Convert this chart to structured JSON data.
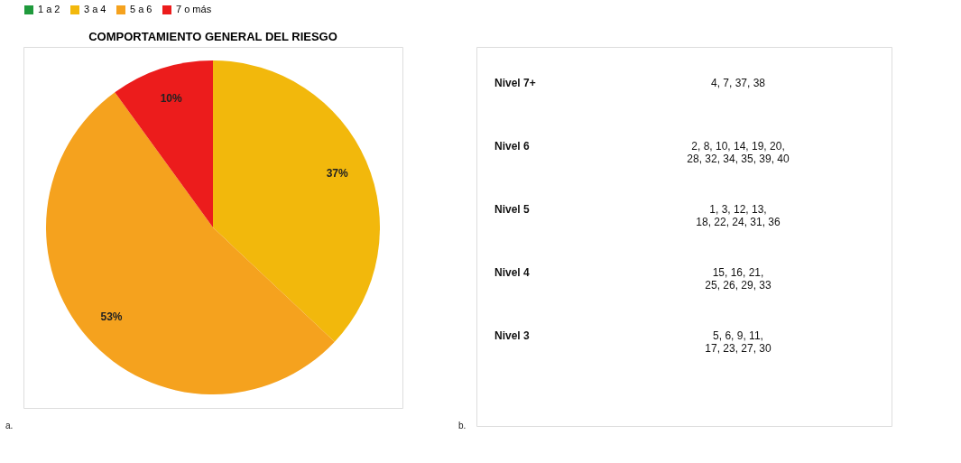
{
  "chart_data": [
    {
      "type": "pie",
      "title": "COMPORTAMIENTO GENERAL DEL RIESGO",
      "categories": [
        "1 a 2",
        "3 a 4",
        "5 a 6",
        "7 o más"
      ],
      "values": [
        0,
        37,
        53,
        10
      ],
      "colors": [
        "#1f9a3c",
        "#f2b80c",
        "#f5a21e",
        "#ec1c1c"
      ],
      "value_labels": [
        null,
        "37%",
        "53%",
        "10%"
      ],
      "legend": "top",
      "annotations": [
        "a."
      ]
    },
    {
      "type": "other",
      "categories": [
        "Nivel 7+",
        "Nivel 6",
        "Nivel 5",
        "Nivel 4",
        "Nivel 3"
      ],
      "annotations": [
        "b.",
        "4, 7, 37, 38",
        "2, 8, 10, 14, 19, 20,\n28, 32, 34, 35, 39, 40",
        "1, 3, 12, 13,\n18, 22, 24, 31, 36",
        "15, 16, 21,\n25, 26, 29, 33",
        "5, 6, 9, 11,\n17,  23, 27, 30"
      ]
    }
  ]
}
